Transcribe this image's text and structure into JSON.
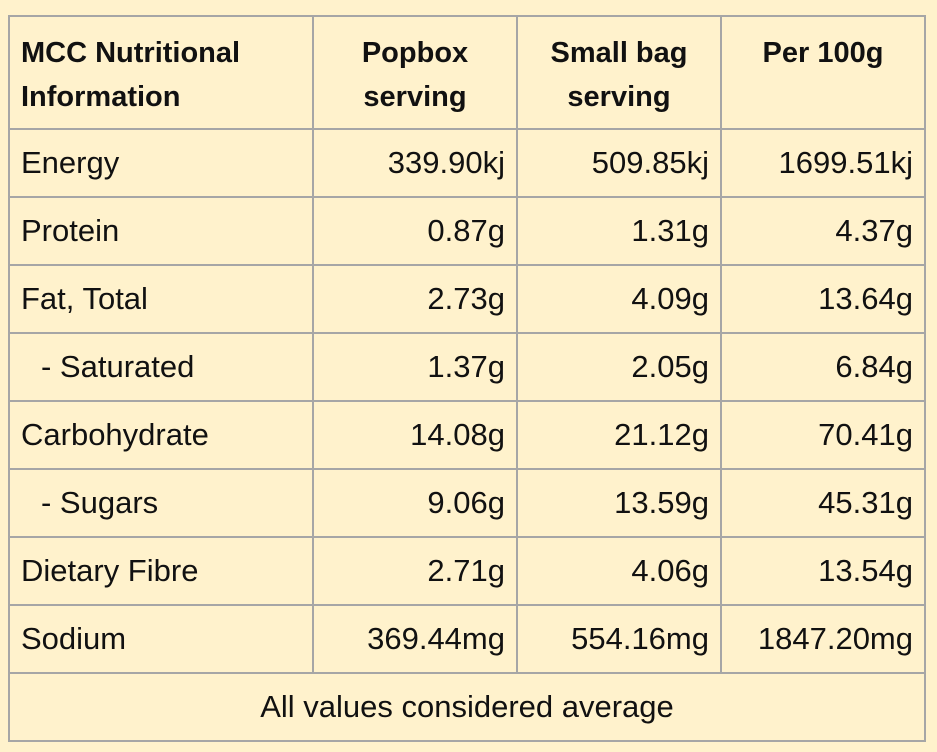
{
  "table": {
    "headers": [
      "MCC Nutritional Information",
      "Popbox serving",
      "Small bag serving",
      "Per 100g"
    ],
    "rows": [
      {
        "label": "Energy",
        "values": [
          "339.90kj",
          "509.85kj",
          "1699.51kj"
        ]
      },
      {
        "label": "Protein",
        "values": [
          "0.87g",
          "1.31g",
          "4.37g"
        ]
      },
      {
        "label": "Fat, Total",
        "values": [
          "2.73g",
          "4.09g",
          "13.64g"
        ]
      },
      {
        "label": "- Saturated",
        "values": [
          "1.37g",
          "2.05g",
          "6.84g"
        ]
      },
      {
        "label": "Carbohydrate",
        "values": [
          "14.08g",
          "21.12g",
          "70.41g"
        ]
      },
      {
        "label": "- Sugars",
        "values": [
          "9.06g",
          "13.59g",
          "45.31g"
        ]
      },
      {
        "label": "Dietary Fibre",
        "values": [
          "2.71g",
          "4.06g",
          "13.54g"
        ]
      },
      {
        "label": "Sodium",
        "values": [
          "369.44mg",
          "554.16mg",
          "1847.20mg"
        ]
      }
    ],
    "footer": "All values considered average"
  },
  "colors": {
    "background": "#fff2cc",
    "border": "#a6a6a6",
    "text": "#111111"
  }
}
